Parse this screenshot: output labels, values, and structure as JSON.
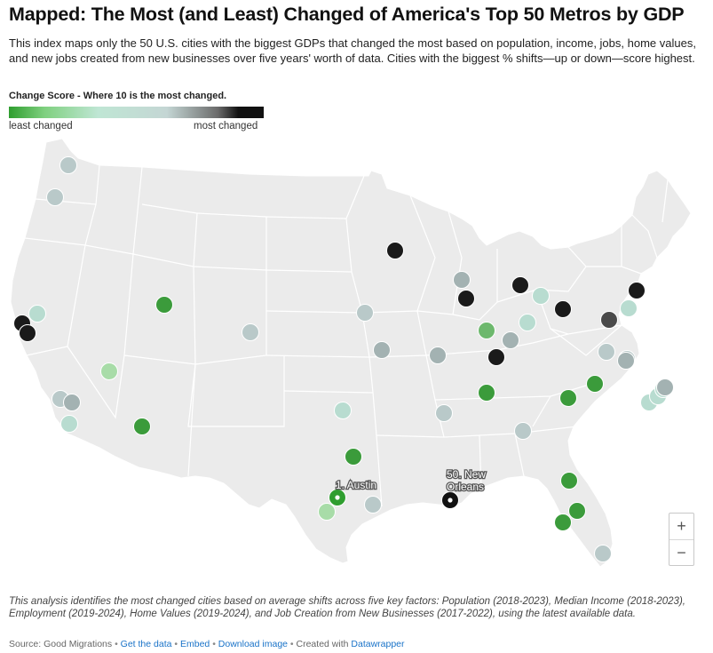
{
  "title": "Mapped: The Most (and Least) Changed of America's Top 50 Metros by GDP",
  "description": "This index maps only the 50 U.S. cities with the biggest GDPs that changed the most based on population, income, jobs, home values, and new jobs created from new businesses over five years' worth of data. Cities with the biggest % shifts—up or down—score highest.",
  "legend": {
    "title": "Change Score - Where 10 is the most changed.",
    "low_label": "least changed",
    "high_label": "most changed",
    "gradient": [
      "#2f9e2f",
      "#7fd07f",
      "#bfe6d4",
      "#c4d6d4",
      "#6b6b6b",
      "#111111"
    ]
  },
  "map_data": {
    "region": "Contiguous United States",
    "cities": [
      {
        "level": "high",
        "color": "#111111",
        "label": "50. New Orleans",
        "label_lines": [
          "50. New",
          "Orleans"
        ],
        "highlighted": true
      },
      {
        "level": "low",
        "color": "#2f9e2f",
        "label": "1. Austin",
        "label_lines": [
          "1. Austin"
        ],
        "highlighted": true
      },
      {
        "level": "high",
        "color": "#1a1a1a"
      },
      {
        "level": "high",
        "color": "#1a1a1a"
      },
      {
        "level": "high",
        "color": "#1a1a1a"
      },
      {
        "level": "high",
        "color": "#1a1a1a"
      },
      {
        "level": "high",
        "color": "#1a1a1a"
      },
      {
        "level": "high",
        "color": "#1a1a1a"
      },
      {
        "level": "high",
        "color": "#1a1a1a"
      },
      {
        "level": "high",
        "color": "#1a1a1a"
      },
      {
        "level": "mid-high",
        "color": "#4a4a4a"
      },
      {
        "level": "low",
        "color": "#3b9b3b"
      },
      {
        "level": "low",
        "color": "#3b9b3b"
      },
      {
        "level": "low",
        "color": "#3b9b3b"
      },
      {
        "level": "low",
        "color": "#3b9b3b"
      },
      {
        "level": "low",
        "color": "#3b9b3b"
      },
      {
        "level": "low",
        "color": "#3b9b3b"
      },
      {
        "level": "low",
        "color": "#3b9b3b"
      },
      {
        "level": "low",
        "color": "#3b9b3b"
      },
      {
        "level": "low",
        "color": "#3b9b3b"
      },
      {
        "level": "low-mid",
        "color": "#6db86d"
      },
      {
        "level": "low-mid",
        "color": "#a8dca8"
      },
      {
        "level": "low-mid",
        "color": "#a8dca8"
      },
      {
        "level": "mid",
        "color": "#b8dcd0"
      },
      {
        "level": "mid",
        "color": "#b8dcd0"
      },
      {
        "level": "mid",
        "color": "#b8dcd0"
      },
      {
        "level": "mid",
        "color": "#b8dcd0"
      },
      {
        "level": "mid",
        "color": "#b8dcd0"
      },
      {
        "level": "mid",
        "color": "#b8dcd0"
      },
      {
        "level": "mid",
        "color": "#b8dcd0"
      },
      {
        "level": "mid",
        "color": "#b8dcd0"
      },
      {
        "level": "mid",
        "color": "#b8dcd0"
      },
      {
        "level": "mid",
        "color": "#b9c9c9"
      },
      {
        "level": "mid",
        "color": "#b9c9c9"
      },
      {
        "level": "mid",
        "color": "#b9c9c9"
      },
      {
        "level": "mid",
        "color": "#b9c9c9"
      },
      {
        "level": "mid",
        "color": "#b9c9c9"
      },
      {
        "level": "mid",
        "color": "#b9c9c9"
      },
      {
        "level": "mid",
        "color": "#b9c9c9"
      },
      {
        "level": "mid",
        "color": "#b9c9c9"
      },
      {
        "level": "mid",
        "color": "#b9c9c9"
      },
      {
        "level": "mid",
        "color": "#b9c9c9"
      },
      {
        "level": "mid",
        "color": "#b9c9c9"
      },
      {
        "level": "mid-high",
        "color": "#a3b2b2"
      },
      {
        "level": "mid-high",
        "color": "#a3b2b2"
      },
      {
        "level": "mid-high",
        "color": "#a3b2b2"
      },
      {
        "level": "mid-high",
        "color": "#a3b2b2"
      },
      {
        "level": "mid-high",
        "color": "#a3b2b2"
      },
      {
        "level": "mid-high",
        "color": "#a3b2b2"
      },
      {
        "level": "mid-high",
        "color": "#a3b2b2"
      }
    ]
  },
  "zoom": {
    "in_label": "+",
    "out_label": "−"
  },
  "footnote": "This analysis identifies the most changed cities based on average shifts across five key factors: Population (2018-2023), Median Income (2018-2023), Employment (2019-2024), Home Values (2019-2024), and Job Creation from New Businesses (2017-2022), using the latest available data.",
  "source": {
    "text": "Source: Good Migrations",
    "get_data": "Get the data",
    "embed": "Embed",
    "download": "Download image",
    "created_with": "Created with",
    "datawrapper": "Datawrapper"
  },
  "colors": {
    "land": "#ebebeb",
    "state_border": "#ffffff",
    "link": "#1a73c8"
  }
}
